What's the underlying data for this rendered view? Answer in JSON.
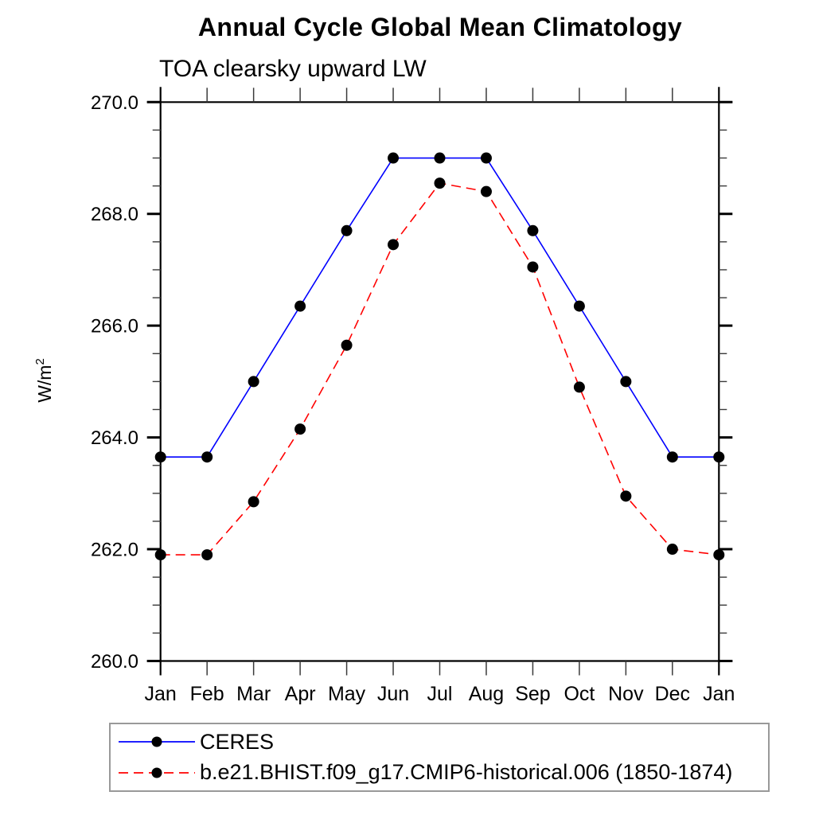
{
  "title": "Annual Cycle Global Mean Climatology",
  "subtitle": "TOA clearsky upward LW",
  "ylabel": {
    "base": "W/m",
    "sup": "2"
  },
  "colors": {
    "ceres_line": "#0000ff",
    "model_line": "#ff0000",
    "marker": "#000000",
    "axis": "#000000",
    "tick_minor": "#3a3a3a",
    "legend_border": "#999999"
  },
  "chart_data": {
    "type": "line",
    "x_tick_labels": [
      "Jan",
      "Feb",
      "Mar",
      "Apr",
      "May",
      "Jun",
      "Jul",
      "Aug",
      "Sep",
      "Oct",
      "Nov",
      "Dec",
      "Jan"
    ],
    "y_tick_labels": [
      "260.0",
      "262.0",
      "264.0",
      "266.0",
      "268.0",
      "270.0"
    ],
    "ylim": [
      260.0,
      270.0
    ],
    "y_major_step": 2.0,
    "y_minor_step": 0.5,
    "grid": false,
    "legend_position": "bottom-left-box",
    "series": [
      {
        "name": "CERES",
        "color": "#0000ff",
        "line_style": "solid",
        "marker": "filled-circle",
        "marker_color": "#000000",
        "values": [
          263.65,
          263.65,
          265.0,
          266.35,
          267.7,
          269.0,
          269.0,
          269.0,
          267.7,
          266.35,
          265.0,
          263.65,
          263.65
        ]
      },
      {
        "name": "b.e21.BHIST.f09_g17.CMIP6-historical.006 (1850-1874)",
        "color": "#ff0000",
        "line_style": "dashed",
        "marker": "filled-circle",
        "marker_color": "#000000",
        "values": [
          261.9,
          261.9,
          262.85,
          264.15,
          265.65,
          267.45,
          268.55,
          268.4,
          267.05,
          264.9,
          262.95,
          262.0,
          261.9
        ]
      }
    ]
  }
}
